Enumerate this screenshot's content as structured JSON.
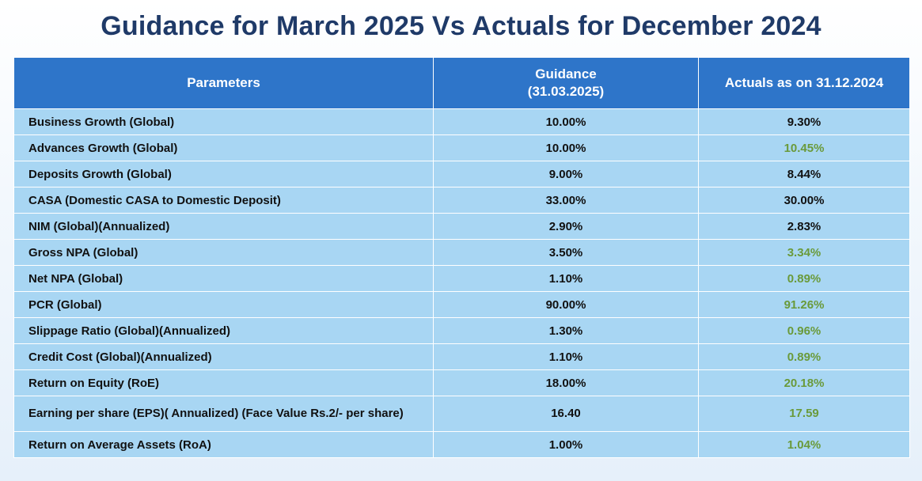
{
  "title": "Guidance for March 2025 Vs Actuals for December 2024",
  "headers": {
    "parameters": "Parameters",
    "guidance_line1": "Guidance",
    "guidance_line2": "(31.03.2025)",
    "actuals": "Actuals as on 31.12.2024"
  },
  "colors": {
    "header_bg": "#2e75c9",
    "row_bg": "#a8d6f3",
    "favorable_text": "#6a9a3a",
    "title_text": "#1f3a68"
  },
  "rows": [
    {
      "parameter": "Business Growth (Global)",
      "guidance": "10.00%",
      "actual": "9.30%",
      "favorable": false
    },
    {
      "parameter": "Advances Growth (Global)",
      "guidance": "10.00%",
      "actual": "10.45%",
      "favorable": true
    },
    {
      "parameter": "Deposits Growth (Global)",
      "guidance": "9.00%",
      "actual": "8.44%",
      "favorable": false
    },
    {
      "parameter": "CASA (Domestic CASA to Domestic Deposit)",
      "guidance": "33.00%",
      "actual": "30.00%",
      "favorable": false
    },
    {
      "parameter": "NIM (Global)(Annualized)",
      "guidance": "2.90%",
      "actual": "2.83%",
      "favorable": false
    },
    {
      "parameter": "Gross NPA (Global)",
      "guidance": "3.50%",
      "actual": "3.34%",
      "favorable": true
    },
    {
      "parameter": "Net NPA (Global)",
      "guidance": "1.10%",
      "actual": "0.89%",
      "favorable": true
    },
    {
      "parameter": "PCR (Global)",
      "guidance": "90.00%",
      "actual": "91.26%",
      "favorable": true
    },
    {
      "parameter": "Slippage Ratio (Global)(Annualized)",
      "guidance": "1.30%",
      "actual": "0.96%",
      "favorable": true
    },
    {
      "parameter": "Credit Cost (Global)(Annualized)",
      "guidance": "1.10%",
      "actual": "0.89%",
      "favorable": true
    },
    {
      "parameter": "Return on Equity (RoE)",
      "guidance": "18.00%",
      "actual": "20.18%",
      "favorable": true
    },
    {
      "parameter": "Earning per share (EPS)( Annualized) (Face Value Rs.2/- per share)",
      "guidance": "16.40",
      "actual": "17.59",
      "favorable": true
    },
    {
      "parameter": "Return on Average Assets (RoA)",
      "guidance": "1.00%",
      "actual": "1.04%",
      "favorable": true
    }
  ]
}
